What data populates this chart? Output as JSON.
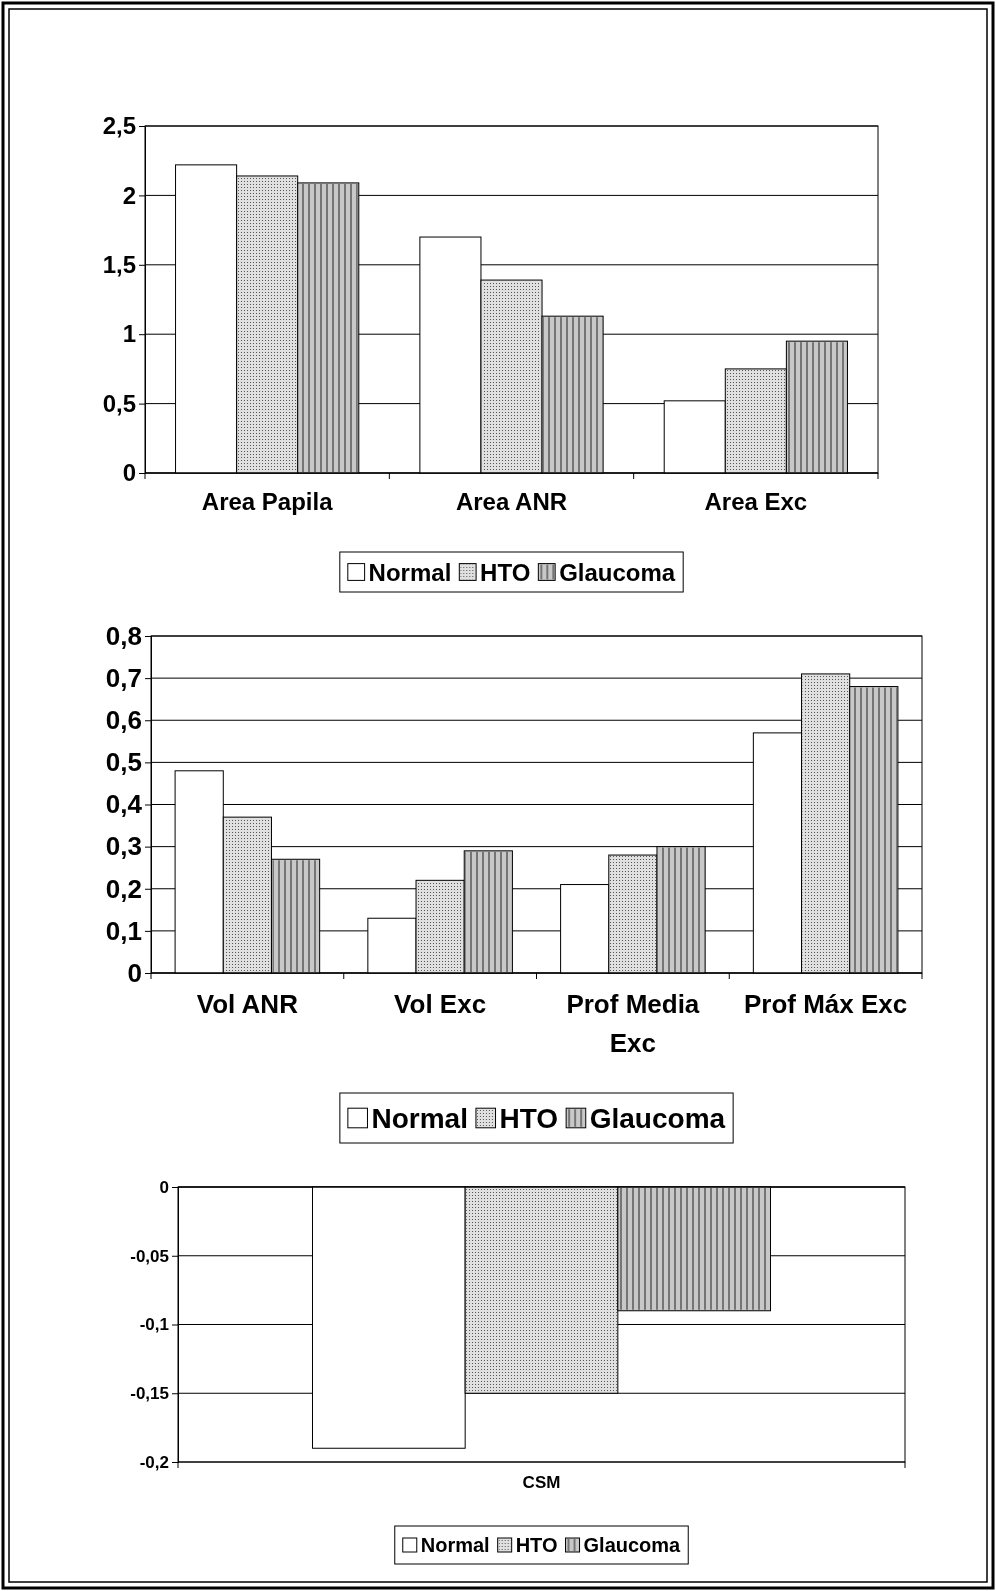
{
  "chart_data": [
    {
      "type": "bar",
      "categories": [
        "Area Papila",
        "Area ANR",
        "Area Exc"
      ],
      "series": [
        {
          "name": "Normal",
          "color": "#ffffff",
          "values": [
            2.22,
            1.7,
            0.52
          ]
        },
        {
          "name": "HTO",
          "color": "#e0e0e0",
          "values": [
            2.14,
            1.39,
            0.75
          ]
        },
        {
          "name": "Glaucoma",
          "color": "#c8c8c8",
          "values": [
            2.09,
            1.13,
            0.95
          ]
        }
      ],
      "ylim": [
        0,
        2.5
      ],
      "yticks": [
        0,
        {
          "value": 0.5,
          "label": "0,5"
        },
        1,
        {
          "value": 1.5,
          "label": "1,5"
        },
        2,
        {
          "value": 2.5,
          "label": "2,5"
        }
      ],
      "grid": "y",
      "legend": "bottom"
    },
    {
      "type": "bar",
      "categories": [
        "Vol ANR",
        "Vol Exc",
        "Prof Media Exc",
        "Prof Máx Exc"
      ],
      "series": [
        {
          "name": "Normal",
          "color": "#ffffff",
          "values": [
            0.48,
            0.13,
            0.21,
            0.57
          ]
        },
        {
          "name": "HTO",
          "color": "#e0e0e0",
          "values": [
            0.37,
            0.22,
            0.28,
            0.71
          ]
        },
        {
          "name": "Glaucoma",
          "color": "#c8c8c8",
          "values": [
            0.27,
            0.29,
            0.3,
            0.68
          ]
        }
      ],
      "ylim": [
        0,
        0.8
      ],
      "yticks": [
        0,
        {
          "value": 0.1,
          "label": "0,1"
        },
        {
          "value": 0.2,
          "label": "0,2"
        },
        {
          "value": 0.3,
          "label": "0,3"
        },
        {
          "value": 0.4,
          "label": "0,4"
        },
        {
          "value": 0.5,
          "label": "0,5"
        },
        {
          "value": 0.6,
          "label": "0,6"
        },
        {
          "value": 0.7,
          "label": "0,7"
        },
        {
          "value": 0.8,
          "label": "0,8"
        }
      ],
      "grid": "y",
      "legend": "bottom"
    },
    {
      "type": "bar",
      "categories": [
        "CSM"
      ],
      "series": [
        {
          "name": "Normal",
          "color": "#ffffff",
          "values": [
            -0.19
          ]
        },
        {
          "name": "HTO",
          "color": "#e0e0e0",
          "values": [
            -0.15
          ]
        },
        {
          "name": "Glaucoma",
          "color": "#c8c8c8",
          "values": [
            -0.09
          ]
        }
      ],
      "ylim": [
        -0.2,
        0
      ],
      "yticks": [
        {
          "value": -0.2,
          "label": "-0,2"
        },
        {
          "value": -0.15,
          "label": "-0,15"
        },
        {
          "value": -0.1,
          "label": "-0,1"
        },
        {
          "value": -0.05,
          "label": "-0,05"
        },
        0
      ],
      "grid": "y",
      "legend": "bottom"
    }
  ]
}
